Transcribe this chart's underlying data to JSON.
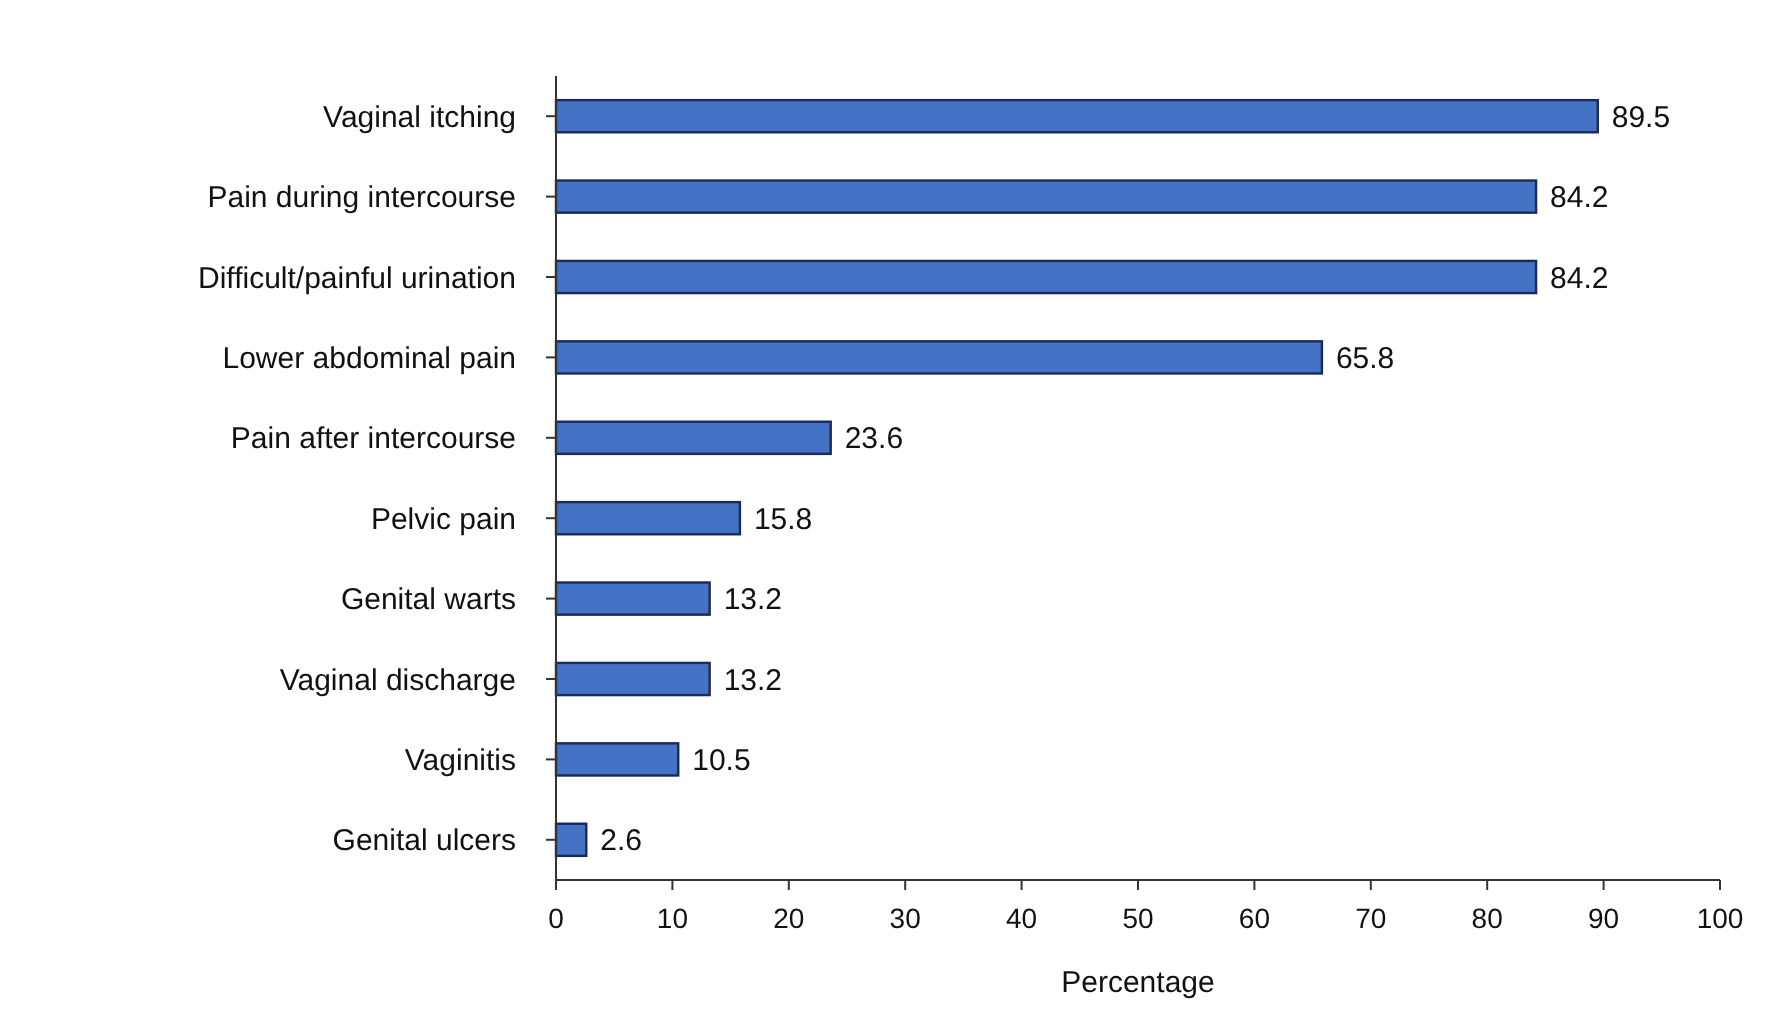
{
  "chart_data": {
    "type": "bar",
    "orientation": "horizontal",
    "xlabel": "Percentage",
    "categories": [
      "Vaginal itching",
      "Pain during intercourse",
      "Difficult/painful urination",
      "Lower abdominal pain",
      "Pain after intercourse",
      "Pelvic pain",
      "Genital warts",
      "Vaginal discharge",
      "Vaginitis",
      "Genital ulcers"
    ],
    "values": [
      89.5,
      84.2,
      84.2,
      65.8,
      23.6,
      15.8,
      13.2,
      13.2,
      10.5,
      2.6
    ],
    "color": "#4472c4",
    "xlim": [
      0,
      100
    ],
    "xticks": [
      0,
      10,
      20,
      30,
      40,
      50,
      60,
      70,
      80,
      90,
      100
    ],
    "data_labels": true,
    "grid": false
  }
}
